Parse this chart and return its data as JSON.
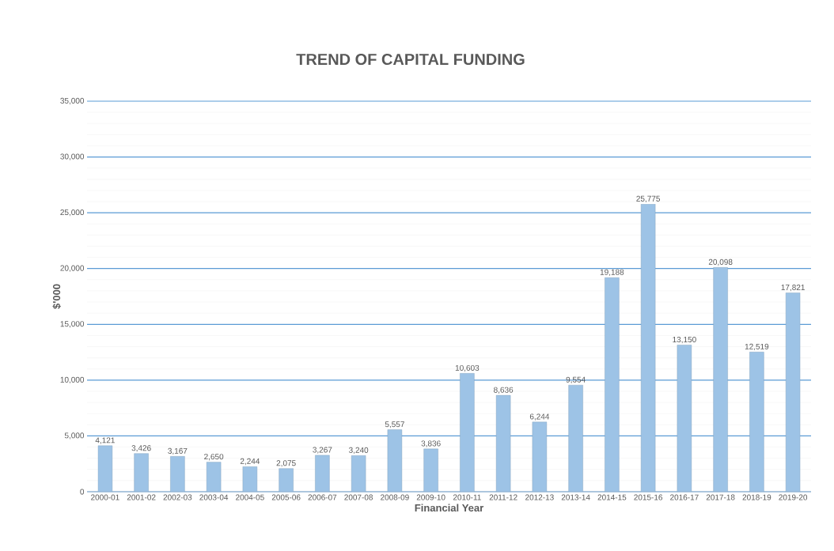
{
  "chart_data": {
    "type": "bar",
    "title": "TREND OF CAPITAL FUNDING",
    "xlabel": "Financial Year",
    "ylabel": "$'000",
    "categories": [
      "2000-01",
      "2001-02",
      "2002-03",
      "2003-04",
      "2004-05",
      "2005-06",
      "2006-07",
      "2007-08",
      "2008-09",
      "2009-10",
      "2010-11",
      "2011-12",
      "2012-13",
      "2013-14",
      "2014-15",
      "2015-16",
      "2016-17",
      "2017-18",
      "2018-19",
      "2019-20"
    ],
    "values": [
      4121,
      3426,
      3167,
      2650,
      2244,
      2075,
      3267,
      3240,
      5557,
      3836,
      10603,
      8636,
      6244,
      9554,
      19188,
      25775,
      13150,
      20098,
      12519,
      17821
    ],
    "value_labels": [
      "4,121",
      "3,426",
      "3,167",
      "2,650",
      "2,244",
      "2,075",
      "3,267",
      "3,240",
      "5,557",
      "3,836",
      "10,603",
      "8,636",
      "6,244",
      "9,554",
      "19,188",
      "25,775",
      "13,150",
      "20,098",
      "12,519",
      "17,821"
    ],
    "color": "#9dc3e6",
    "ylim": [
      0,
      35000
    ],
    "yticks": [
      {
        "value": 0,
        "label": "0"
      },
      {
        "value": 5000,
        "label": "5,000"
      },
      {
        "value": 10000,
        "label": "10,000"
      },
      {
        "value": 15000,
        "label": "15,000"
      },
      {
        "value": 20000,
        "label": "20,000"
      },
      {
        "value": 25000,
        "label": "25,000"
      },
      {
        "value": 30000,
        "label": "30,000"
      },
      {
        "value": 35000,
        "label": "35,000"
      }
    ],
    "grid": "y"
  }
}
